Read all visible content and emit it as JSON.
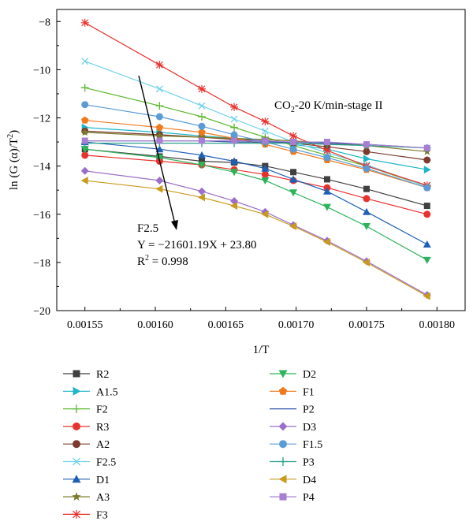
{
  "chart_data": {
    "type": "line",
    "xlabel": "1/T",
    "ylabel": "ln (G (α)/T²)",
    "ylabel_parts": {
      "pre": "ln (G (α)/T",
      "sup": "2",
      "post": ")"
    },
    "xlim": [
      0.00153,
      0.00182
    ],
    "ylim": [
      -20,
      -7.5
    ],
    "x_ticks": [
      0.00155,
      0.0016,
      0.00165,
      0.0017,
      0.00175,
      0.0018
    ],
    "x_tick_labels": [
      "0.00155",
      "0.00160",
      "0.00165",
      "0.00170",
      "0.00175",
      "0.00180"
    ],
    "y_ticks": [
      -20,
      -18,
      -16,
      -14,
      -12,
      -10,
      -8
    ],
    "y_tick_labels": [
      "−20",
      "−18",
      "−16",
      "−14",
      "−12",
      "−10",
      "−8"
    ],
    "x": [
      0.00155,
      0.001603,
      0.001633,
      0.001656,
      0.001678,
      0.001698,
      0.001722,
      0.00175,
      0.001793
    ],
    "annotations": {
      "title_pre": "CO",
      "title_sub": "2",
      "title_post": "-20 K/min-stage II",
      "fit_name": "F2.5",
      "fit_equation": "Y = −21601.19X + 23.80",
      "fit_r2_pre": "R",
      "fit_r2_sup": "2",
      "fit_r2_post": " = 0.998"
    },
    "series": [
      {
        "name": "R2",
        "color": "#404040",
        "marker": "square",
        "values": [
          -13.3,
          -13.6,
          -13.8,
          -13.85,
          -14.0,
          -14.25,
          -14.55,
          -14.95,
          -15.65
        ]
      },
      {
        "name": "A1.5",
        "color": "#1fb5c8",
        "marker": "triangle-right",
        "values": [
          -12.4,
          -12.6,
          -12.75,
          -12.85,
          -12.95,
          -13.1,
          -13.3,
          -13.7,
          -14.15
        ]
      },
      {
        "name": "F2",
        "color": "#5cb82e",
        "marker": "plus",
        "values": [
          -10.75,
          -11.5,
          -11.95,
          -12.4,
          -12.8,
          -13.15,
          -13.55,
          -14.0,
          -14.85
        ]
      },
      {
        "name": "R3",
        "color": "#e8322e",
        "marker": "circle",
        "values": [
          -13.55,
          -13.8,
          -13.95,
          -14.15,
          -14.35,
          -14.6,
          -14.9,
          -15.35,
          -16.0
        ]
      },
      {
        "name": "A2",
        "color": "#7a3b2e",
        "marker": "circle",
        "values": [
          -12.55,
          -12.7,
          -12.8,
          -12.9,
          -12.95,
          -13.05,
          -13.2,
          -13.4,
          -13.75
        ]
      },
      {
        "name": "F2.5",
        "color": "#6fd1ea",
        "marker": "x",
        "values": [
          -9.65,
          -10.8,
          -11.5,
          -12.05,
          -12.55,
          -13.0,
          -13.45,
          -13.95,
          -14.85
        ]
      },
      {
        "name": "D1",
        "color": "#1f5fb4",
        "marker": "triangle-up",
        "values": [
          -13.0,
          -13.3,
          -13.55,
          -13.8,
          -14.1,
          -14.55,
          -15.05,
          -15.9,
          -17.25
        ]
      },
      {
        "name": "A3",
        "color": "#7a7a2a",
        "marker": "star",
        "values": [
          -12.6,
          -12.75,
          -12.8,
          -12.85,
          -12.9,
          -12.95,
          -13.05,
          -13.15,
          -13.4
        ]
      },
      {
        "name": "F3",
        "color": "#e8322e",
        "marker": "asterisk",
        "values": [
          -8.05,
          -9.8,
          -10.8,
          -11.55,
          -12.15,
          -12.75,
          -13.35,
          -14.0,
          -14.8
        ]
      },
      {
        "name": "D2",
        "color": "#2db35a",
        "marker": "triangle-down",
        "values": [
          -13.3,
          -13.65,
          -13.95,
          -14.25,
          -14.6,
          -15.1,
          -15.7,
          -16.5,
          -17.9
        ]
      },
      {
        "name": "F1",
        "color": "#f07a1e",
        "marker": "pentagon",
        "values": [
          -12.1,
          -12.4,
          -12.6,
          -12.85,
          -13.1,
          -13.4,
          -13.75,
          -14.15,
          -14.9
        ]
      },
      {
        "name": "P2",
        "color": "#2b4fa8",
        "marker": "none",
        "values": [
          -12.95,
          -12.95,
          -12.95,
          -13.0,
          -13.0,
          -13.0,
          -13.05,
          -13.1,
          -13.25
        ]
      },
      {
        "name": "D3",
        "color": "#9b6fc8",
        "marker": "diamond",
        "values": [
          -14.2,
          -14.6,
          -15.05,
          -15.45,
          -15.9,
          -16.45,
          -17.1,
          -17.95,
          -19.35
        ]
      },
      {
        "name": "F1.5",
        "color": "#5b9bd5",
        "marker": "circle",
        "values": [
          -11.45,
          -11.95,
          -12.35,
          -12.7,
          -13.0,
          -13.3,
          -13.65,
          -14.1,
          -14.9
        ]
      },
      {
        "name": "P3",
        "color": "#2aa088",
        "marker": "plus",
        "values": [
          -13.05,
          -13.05,
          -13.05,
          -13.05,
          -13.05,
          -13.05,
          -13.1,
          -13.15,
          -13.25
        ]
      },
      {
        "name": "D4",
        "color": "#c89a1e",
        "marker": "triangle-left",
        "values": [
          -14.6,
          -14.95,
          -15.3,
          -15.65,
          -16.0,
          -16.5,
          -17.15,
          -18.0,
          -19.4
        ]
      },
      {
        "name": "P4",
        "color": "#a77fd2",
        "marker": "square",
        "values": [
          -12.95,
          -12.95,
          -12.95,
          -12.95,
          -12.95,
          -13.0,
          -13.0,
          -13.1,
          -13.25
        ]
      }
    ]
  }
}
